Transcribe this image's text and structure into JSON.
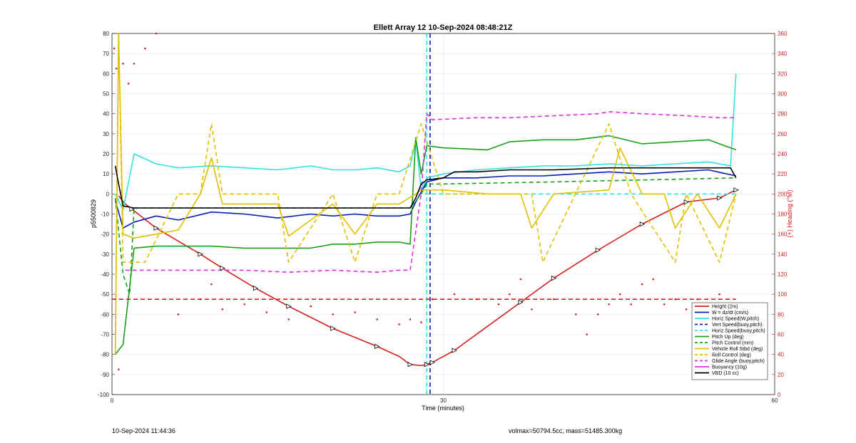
{
  "footer": {
    "timestamp": "10-Sep-2024 11:44:36",
    "mass_info": "volmax=50794.5cc, mass=51485.300kg"
  },
  "chart_data": {
    "type": "line",
    "title": "Ellett Array 12 10-Sep-2024 08:48:21Z",
    "xlabel": "Time (minutes)",
    "ylabel_left": "p5500829",
    "ylabel_right": "(+) Heading (°M)",
    "xlim": [
      0,
      60
    ],
    "ylim_left": [
      -100,
      80
    ],
    "ylim_right": [
      0,
      360
    ],
    "xticks": [
      "0",
      "30",
      "60"
    ],
    "yticks_left": [
      "80",
      "70",
      "60",
      "50",
      "40",
      "30",
      "20",
      "10",
      "0",
      "-10",
      "-20",
      "-30",
      "-40",
      "-50",
      "-60",
      "-70",
      "-80",
      "-90",
      "-100"
    ],
    "yticks_right": [
      "360",
      "340",
      "320",
      "300",
      "280",
      "260",
      "240",
      "220",
      "200",
      "180",
      "160",
      "140",
      "120",
      "100",
      "80",
      "60",
      "40",
      "20",
      "0"
    ],
    "grid": true,
    "legend_position": "bottom-right",
    "colors": {
      "red": "#d62020",
      "blue": "#0a1cb4",
      "cyan": "#35e0e0",
      "green": "#18a018",
      "yellow": "#e0c000",
      "magenta": "#e030e0",
      "black": "#000000",
      "right_axis": "#d62020",
      "grid": "#e4e4e4"
    },
    "series": [
      {
        "name": "Height (2m)",
        "color": "red",
        "style": "solid",
        "axis": "left",
        "x": [
          0.6,
          1.2,
          4,
          8,
          10,
          13,
          16,
          20,
          24,
          26,
          27,
          28,
          28.5,
          29,
          31,
          34,
          37,
          40,
          44,
          48,
          52,
          55,
          56.5
        ],
        "y": [
          -1,
          -5,
          -17,
          -30,
          -37,
          -47,
          -56,
          -67,
          -76,
          -81,
          -85,
          -85.5,
          -85,
          -84,
          -78,
          -66,
          -54,
          -42,
          -28,
          -15,
          -4,
          -2,
          2
        ]
      },
      {
        "name": "W = dz/dt (cm/s)",
        "color": "blue",
        "style": "solid",
        "axis": "left",
        "x": [
          0.3,
          1,
          2,
          4,
          6,
          9,
          12,
          15,
          18,
          20,
          22,
          24,
          26,
          27,
          27.5,
          28.5,
          30,
          33,
          36,
          39,
          42,
          45,
          48,
          51,
          54,
          56.5
        ],
        "y": [
          -3,
          -17,
          -14,
          -11,
          -13,
          -9,
          -10,
          -12,
          -10,
          -11,
          -10,
          -11,
          -11,
          -10,
          -4,
          6,
          8,
          8,
          9,
          9,
          10,
          11,
          10,
          11,
          12,
          9
        ]
      },
      {
        "name": "Horiz Speed(W,pitch)",
        "color": "cyan",
        "style": "solid",
        "axis": "left",
        "x": [
          0.3,
          1,
          2,
          4,
          6,
          9,
          12,
          15,
          18,
          20,
          22,
          24,
          26,
          27,
          27.5,
          28,
          28.5,
          30,
          33,
          36,
          39,
          42,
          45,
          48,
          51,
          54,
          56,
          56.5
        ],
        "y": [
          0,
          -8,
          20,
          15,
          13,
          14,
          13,
          12,
          14,
          12,
          12,
          13,
          11,
          14,
          27,
          2,
          8,
          10,
          12,
          13,
          14,
          14,
          15,
          14,
          15,
          16,
          14,
          60
        ]
      },
      {
        "name": "Vert Speed(buoy,pitch)",
        "color": "blue",
        "style": "dashed",
        "axis": "left",
        "x": [
          56.5
        ],
        "y": [
          10
        ]
      },
      {
        "name": "Horiz Speed(buoy,pitch)",
        "color": "cyan",
        "style": "dashed",
        "axis": "left",
        "x": [
          28.3,
          56.5
        ],
        "y": [
          0,
          0
        ]
      },
      {
        "name": "Pitch Up (deg)",
        "color": "green",
        "style": "solid",
        "axis": "left",
        "x": [
          0.3,
          1,
          2,
          4,
          6,
          9,
          12,
          15,
          18,
          20,
          22,
          24,
          26,
          27,
          27.5,
          28,
          28.5,
          30,
          34,
          36,
          39,
          42,
          45,
          48,
          51,
          54,
          56.5
        ],
        "y": [
          -80,
          -75,
          -27,
          -26,
          -26,
          -26,
          -27,
          -27,
          -27,
          -25,
          -25,
          -24,
          -24,
          -25,
          28,
          10,
          24,
          23,
          22,
          26,
          27,
          27,
          29,
          25,
          26,
          27,
          22
        ]
      },
      {
        "name": "Pitch Control (mm)",
        "color": "green",
        "style": "dashed",
        "axis": "left",
        "x": [
          0.3,
          1,
          1.6,
          2,
          27,
          28,
          28.5,
          30,
          40,
          56.5
        ],
        "y": [
          -2,
          -40,
          -50,
          -7,
          -7,
          0,
          5,
          5,
          6,
          8
        ]
      },
      {
        "name": "Vehicle Roll Stbd (deg)",
        "color": "yellow",
        "style": "solid",
        "axis": "left",
        "x": [
          0.3,
          0.6,
          1,
          2,
          4,
          6,
          8,
          9,
          10,
          15,
          16,
          20,
          22,
          24,
          26,
          27.5,
          28,
          30,
          34,
          37,
          38,
          40,
          45,
          46,
          48,
          50,
          51,
          53,
          55,
          56.5
        ],
        "y": [
          -80,
          80,
          -20,
          -22,
          -20,
          -18,
          0,
          18,
          -5,
          -5,
          -21,
          -5,
          -20,
          -5,
          -5,
          0,
          2,
          2,
          0,
          0,
          -17,
          0,
          2,
          23,
          0,
          0,
          -17,
          0,
          -17,
          0
        ]
      },
      {
        "name": "Roll Control (deg)",
        "color": "yellow",
        "style": "dashed",
        "axis": "left",
        "x": [
          0.3,
          0.6,
          1,
          3,
          6,
          8,
          9,
          10,
          15,
          16,
          20,
          22,
          24,
          26,
          28,
          30,
          38,
          39,
          45,
          47,
          51,
          52,
          55,
          56.5
        ],
        "y": [
          -80,
          80,
          -34,
          -34,
          0,
          0,
          35,
          0,
          0,
          -34,
          0,
          -34,
          0,
          0,
          35,
          0,
          0,
          -34,
          35,
          0,
          -34,
          0,
          -34,
          0
        ]
      },
      {
        "name": "Glide Angle (buoy,pitch)",
        "color": "magenta",
        "style": "dashed",
        "axis": "left",
        "x": [
          1.2,
          2,
          5,
          8,
          12,
          16,
          20,
          24,
          26,
          27,
          28,
          28.5,
          29,
          33,
          36,
          40,
          44,
          45,
          48,
          52,
          55,
          56.5
        ],
        "y": [
          -38,
          -38,
          -38,
          -38,
          -38,
          -39,
          -38,
          -39,
          -38,
          -38,
          0,
          40,
          37,
          38,
          38,
          39,
          40,
          41,
          40,
          39,
          38,
          38
        ]
      },
      {
        "name": "Buoyancy (10g)",
        "color": "magenta",
        "style": "solid",
        "axis": "left",
        "x": [
          56.5
        ],
        "y": [
          38
        ]
      },
      {
        "name": "VBD (10 cc)",
        "color": "black",
        "style": "solid",
        "axis": "left",
        "x": [
          0.3,
          0.6,
          1,
          2,
          5,
          10,
          15,
          20,
          25,
          26,
          27,
          27.5,
          28,
          28.5,
          30,
          31,
          33,
          36,
          40,
          45,
          50,
          54,
          56,
          56.5
        ],
        "y": [
          14,
          5,
          -6,
          -7,
          -7,
          -7,
          -7,
          -7,
          -7,
          -7,
          -7,
          -2,
          5,
          7,
          8,
          11,
          11,
          12,
          12,
          13,
          13,
          13,
          13,
          8
        ]
      },
      {
        "name": "Heading",
        "color": "red",
        "style": "dotted",
        "axis": "right",
        "x": [
          0.2,
          0.4,
          0.6,
          1,
          1.5,
          2,
          3,
          4,
          6,
          8,
          9,
          10,
          12,
          14,
          16,
          18,
          20,
          22,
          24,
          26,
          27,
          28,
          29,
          31,
          33,
          35,
          36,
          37,
          38,
          40,
          42,
          43,
          44,
          45,
          46,
          47,
          48,
          49,
          50,
          51,
          52,
          53,
          54,
          55,
          56
        ],
        "y": [
          345,
          325,
          25,
          330,
          310,
          330,
          345,
          360,
          80,
          95,
          110,
          85,
          90,
          82,
          75,
          88,
          80,
          82,
          75,
          70,
          75,
          72,
          95,
          100,
          95,
          90,
          100,
          115,
          85,
          95,
          80,
          60,
          80,
          90,
          100,
          90,
          110,
          115,
          90,
          95,
          85,
          95,
          90,
          100,
          90
        ]
      },
      {
        "name": "Heading target",
        "color": "red",
        "style": "dashed",
        "axis": "right",
        "x": [
          0,
          56.5
        ],
        "y": [
          95,
          95
        ]
      }
    ],
    "markers_on_height": [
      1.8,
      4,
      8,
      10,
      13,
      16,
      20,
      24,
      27,
      28.5,
      29,
      31,
      37,
      40,
      44,
      48,
      52,
      55,
      56.5
    ],
    "vertical_lines": [
      {
        "x": 28.5,
        "color": "cyan",
        "style": "dashed"
      },
      {
        "x": 28.8,
        "color": "blue",
        "style": "dashed"
      }
    ]
  }
}
